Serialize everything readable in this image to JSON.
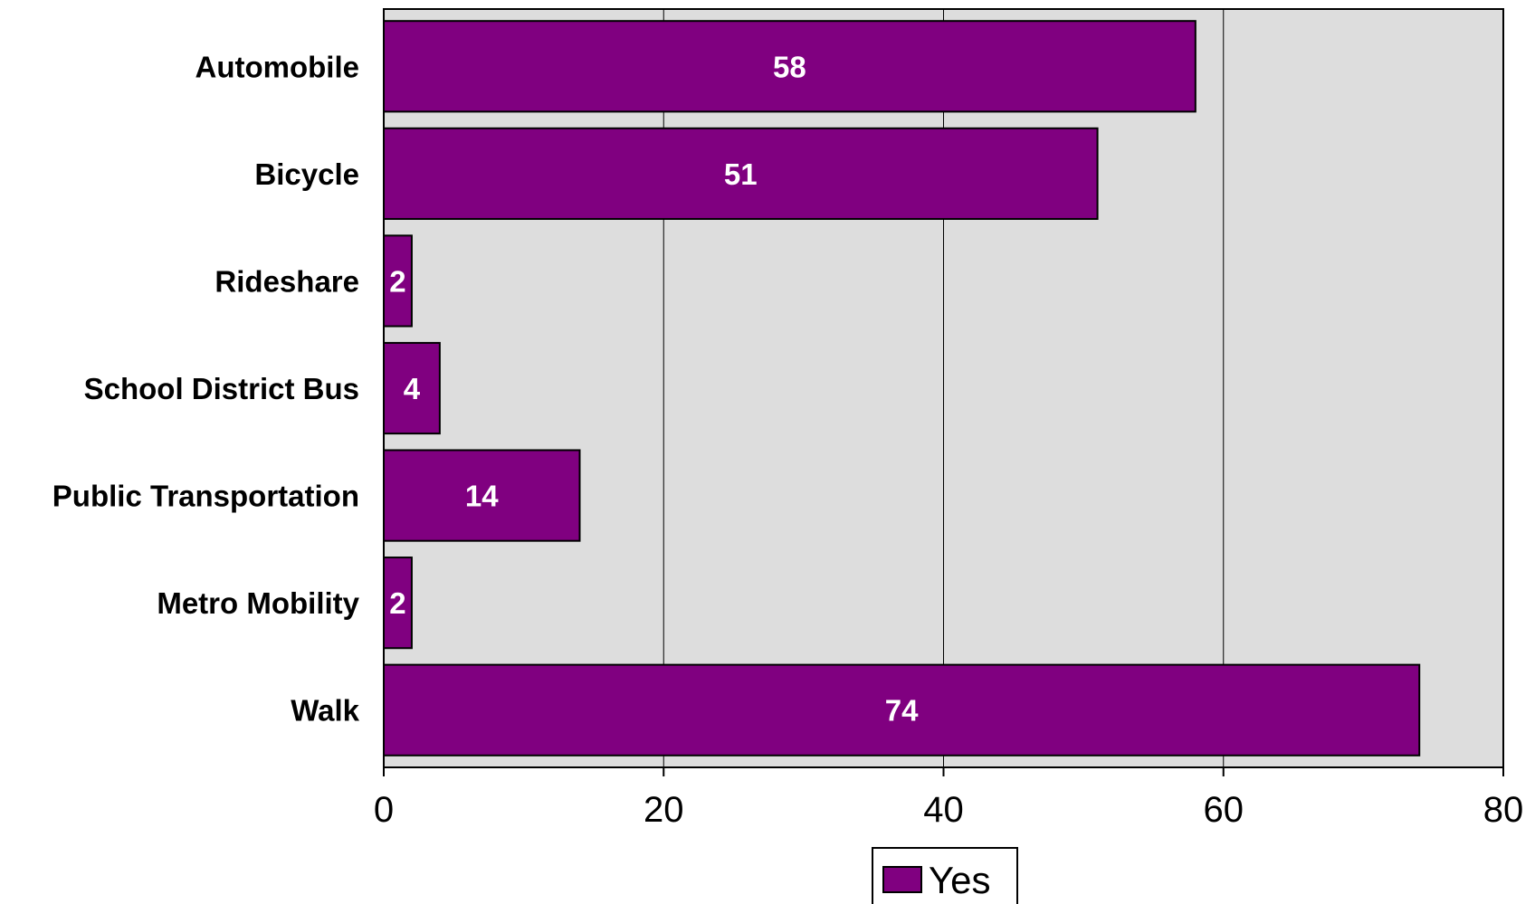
{
  "chart_data": {
    "type": "bar",
    "orientation": "horizontal",
    "categories": [
      "Automobile",
      "Bicycle",
      "Rideshare",
      "School District Bus",
      "Public Transportation",
      "Metro Mobility",
      "Walk"
    ],
    "series": [
      {
        "name": "Yes",
        "values": [
          58,
          51,
          2,
          4,
          14,
          2,
          74
        ],
        "color": "#800080"
      }
    ],
    "xlim": [
      0,
      80
    ],
    "x_ticks": [
      "0",
      "20",
      "40",
      "60",
      "80"
    ],
    "grid": "vertical",
    "legend": "bottom-center",
    "plot_background": "#dddddd",
    "title": "",
    "xlabel": "",
    "ylabel": ""
  }
}
